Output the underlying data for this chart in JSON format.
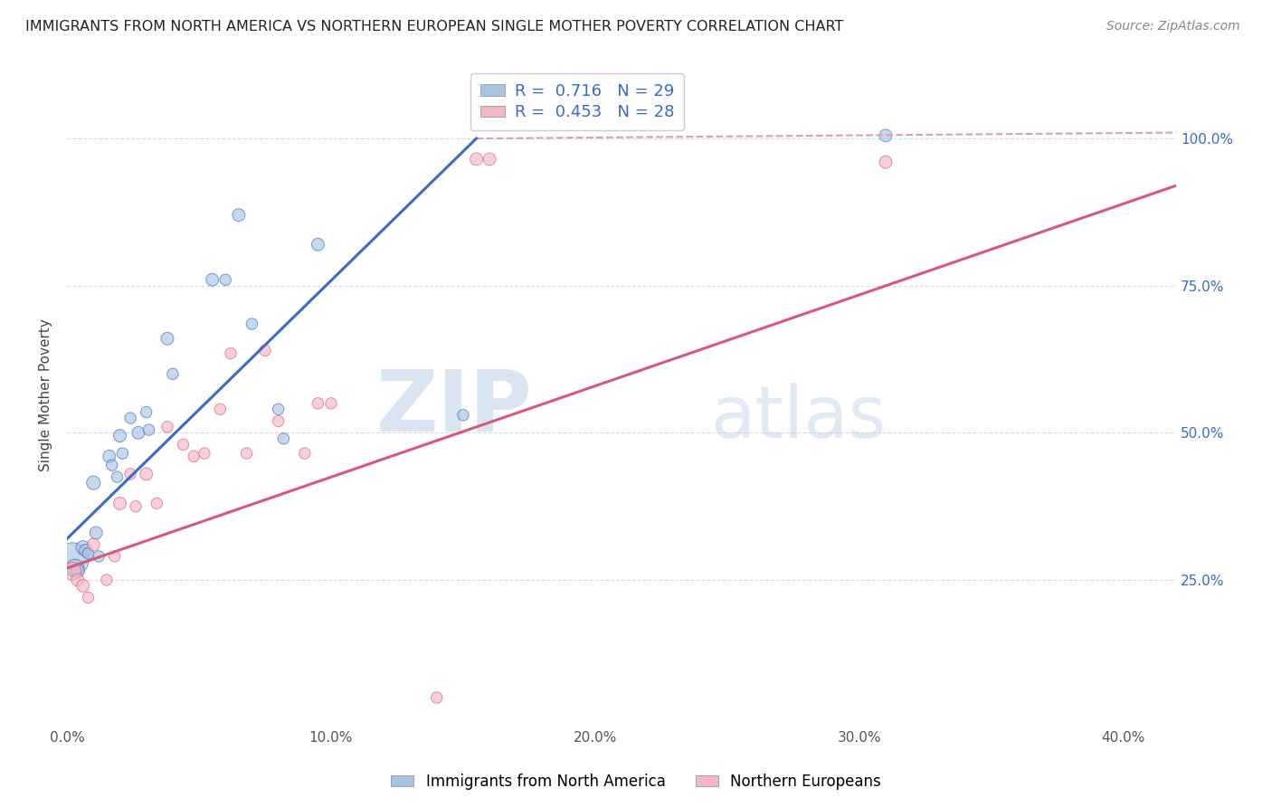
{
  "title": "IMMIGRANTS FROM NORTH AMERICA VS NORTHERN EUROPEAN SINGLE MOTHER POVERTY CORRELATION CHART",
  "source": "Source: ZipAtlas.com",
  "xlabel": "",
  "ylabel": "Single Mother Poverty",
  "x_tick_labels": [
    "0.0%",
    "10.0%",
    "20.0%",
    "30.0%",
    "40.0%"
  ],
  "x_tick_positions": [
    0.0,
    0.1,
    0.2,
    0.3,
    0.4
  ],
  "y_tick_labels": [
    "25.0%",
    "50.0%",
    "75.0%",
    "100.0%"
  ],
  "y_tick_positions": [
    0.25,
    0.5,
    0.75,
    1.0
  ],
  "xlim": [
    0.0,
    0.42
  ],
  "ylim": [
    0.0,
    1.13
  ],
  "legend_label_blue": "R =  0.716   N = 29",
  "legend_label_pink": "R =  0.453   N = 28",
  "legend_label_bottom_blue": "Immigrants from North America",
  "legend_label_bottom_pink": "Northern Europeans",
  "color_blue": "#A8C4E0",
  "color_pink": "#F2B8C6",
  "line_color_blue": "#3A6BC8",
  "line_color_pink": "#D85878",
  "line_color_dashed": "#D8A0B0",
  "blue_scatter_x": [
    0.002,
    0.003,
    0.004,
    0.006,
    0.007,
    0.008,
    0.01,
    0.011,
    0.012,
    0.016,
    0.017,
    0.019,
    0.02,
    0.021,
    0.024,
    0.027,
    0.03,
    0.031,
    0.038,
    0.04,
    0.055,
    0.06,
    0.065,
    0.07,
    0.08,
    0.082,
    0.095,
    0.15,
    0.31
  ],
  "blue_scatter_y": [
    0.285,
    0.27,
    0.265,
    0.305,
    0.3,
    0.295,
    0.415,
    0.33,
    0.29,
    0.46,
    0.445,
    0.425,
    0.495,
    0.465,
    0.525,
    0.5,
    0.535,
    0.505,
    0.66,
    0.6,
    0.76,
    0.76,
    0.87,
    0.685,
    0.54,
    0.49,
    0.82,
    0.53,
    1.005
  ],
  "blue_scatter_sizes": [
    700,
    200,
    120,
    120,
    100,
    80,
    120,
    100,
    80,
    100,
    80,
    80,
    100,
    80,
    80,
    100,
    80,
    80,
    100,
    80,
    100,
    80,
    100,
    80,
    80,
    80,
    100,
    80,
    100
  ],
  "pink_scatter_x": [
    0.002,
    0.004,
    0.006,
    0.008,
    0.01,
    0.015,
    0.018,
    0.02,
    0.024,
    0.026,
    0.03,
    0.034,
    0.038,
    0.044,
    0.048,
    0.052,
    0.058,
    0.062,
    0.068,
    0.075,
    0.08,
    0.09,
    0.095,
    0.1,
    0.14,
    0.155,
    0.16,
    0.31
  ],
  "pink_scatter_y": [
    0.265,
    0.25,
    0.24,
    0.22,
    0.31,
    0.25,
    0.29,
    0.38,
    0.43,
    0.375,
    0.43,
    0.38,
    0.51,
    0.48,
    0.46,
    0.465,
    0.54,
    0.635,
    0.465,
    0.64,
    0.52,
    0.465,
    0.55,
    0.55,
    0.05,
    0.965,
    0.965,
    0.96
  ],
  "pink_scatter_sizes": [
    200,
    100,
    100,
    80,
    100,
    80,
    80,
    100,
    80,
    80,
    100,
    80,
    80,
    80,
    80,
    80,
    80,
    80,
    80,
    80,
    80,
    80,
    80,
    80,
    80,
    100,
    100,
    100
  ],
  "blue_line_x": [
    0.0,
    0.155
  ],
  "blue_line_y": [
    0.32,
    1.0
  ],
  "pink_line_x": [
    0.0,
    0.42
  ],
  "pink_line_y": [
    0.27,
    0.92
  ],
  "dashed_line_x": [
    0.155,
    0.42
  ],
  "dashed_line_y": [
    1.0,
    1.01
  ],
  "background_color": "#FFFFFF",
  "grid_color": "#D8D8E8",
  "watermark_zip": "ZIP",
  "watermark_atlas": "atlas",
  "title_fontsize": 11.5,
  "source_fontsize": 10,
  "ylabel_fontsize": 11,
  "tick_fontsize": 11,
  "legend_fontsize": 13
}
